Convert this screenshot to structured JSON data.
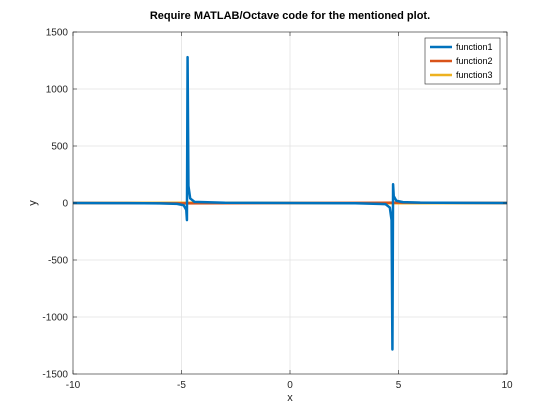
{
  "chart_data": {
    "type": "line",
    "title": "Require MATLAB/Octave code for the mentioned plot.",
    "xlabel": "x",
    "ylabel": "y",
    "xlim": [
      -10,
      10
    ],
    "ylim": [
      -1500,
      1500
    ],
    "xticks": [
      -10,
      -5,
      0,
      5,
      10
    ],
    "yticks": [
      -1500,
      -1000,
      -500,
      0,
      500,
      1000,
      1500
    ],
    "xtick_labels": [
      "-10",
      "-5",
      "0",
      "5",
      "10"
    ],
    "ytick_labels": [
      "-1500",
      "-1000",
      "-500",
      "0",
      "500",
      "1000",
      "1500"
    ],
    "grid": true,
    "legend_position": "top-right",
    "series": [
      {
        "name": "function1",
        "color": "#0072bd",
        "points": [
          [
            -10,
            0
          ],
          [
            -8,
            -1
          ],
          [
            -6,
            -3
          ],
          [
            -5.2,
            -8
          ],
          [
            -4.9,
            -20
          ],
          [
            -4.78,
            -60
          ],
          [
            -4.75,
            -150
          ],
          [
            -4.72,
            1280
          ],
          [
            -4.68,
            150
          ],
          [
            -4.6,
            40
          ],
          [
            -4.4,
            10
          ],
          [
            -3,
            2
          ],
          [
            0,
            0
          ],
          [
            3,
            -2
          ],
          [
            4.4,
            -10
          ],
          [
            4.6,
            -40
          ],
          [
            4.68,
            -150
          ],
          [
            4.72,
            -1285
          ],
          [
            4.75,
            165
          ],
          [
            4.78,
            60
          ],
          [
            4.9,
            20
          ],
          [
            5.2,
            8
          ],
          [
            6,
            3
          ],
          [
            8,
            1
          ],
          [
            10,
            0
          ]
        ]
      },
      {
        "name": "function2",
        "color": "#d95319",
        "points": [
          [
            -10,
            0
          ],
          [
            -5,
            -3
          ],
          [
            0,
            0
          ],
          [
            5,
            3
          ],
          [
            10,
            0
          ]
        ]
      },
      {
        "name": "function3",
        "color": "#edb120",
        "points": [
          [
            -10,
            0
          ],
          [
            -5,
            2
          ],
          [
            0,
            0
          ],
          [
            5,
            -2
          ],
          [
            10,
            0
          ]
        ]
      }
    ]
  }
}
